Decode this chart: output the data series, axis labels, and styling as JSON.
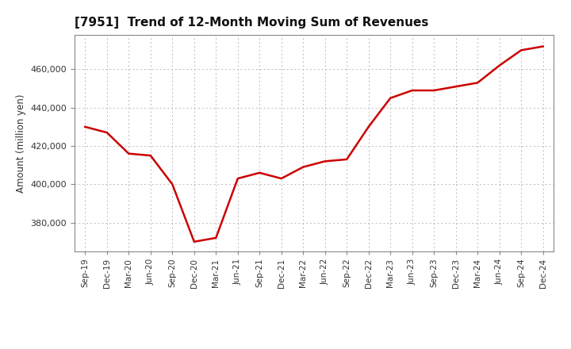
{
  "title": "[7951]  Trend of 12-Month Moving Sum of Revenues",
  "ylabel": "Amount (million yen)",
  "line_color": "#cc0000",
  "background_color": "#ffffff",
  "grid_color": "#bbbbbb",
  "x_labels": [
    "Sep-19",
    "Dec-19",
    "Mar-20",
    "Jun-20",
    "Sep-20",
    "Dec-20",
    "Mar-21",
    "Jun-21",
    "Sep-21",
    "Dec-21",
    "Mar-22",
    "Jun-22",
    "Sep-22",
    "Dec-22",
    "Mar-23",
    "Jun-23",
    "Sep-23",
    "Dec-23",
    "Mar-24",
    "Jun-24",
    "Sep-24",
    "Dec-24"
  ],
  "values": [
    430000,
    427000,
    416000,
    415000,
    400000,
    370000,
    372000,
    403000,
    406000,
    403000,
    409000,
    412000,
    413000,
    430000,
    445000,
    449000,
    449000,
    451000,
    453000,
    462000,
    470000,
    472000
  ],
  "ylim": [
    365000,
    478000
  ],
  "yticks": [
    380000,
    400000,
    420000,
    440000,
    460000
  ]
}
